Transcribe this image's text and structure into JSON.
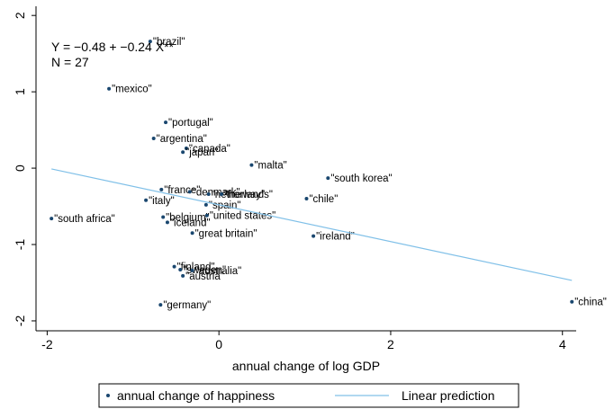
{
  "chart_data": {
    "type": "scatter",
    "x_label": "annual change of log GDP",
    "annotations": [
      "Y = −0.48 + −0.24 X**",
      "N = 27"
    ],
    "xlim": [
      -2.13,
      4.16
    ],
    "ylim": [
      -2.13,
      2.12
    ],
    "xticks": [
      -2,
      0,
      2,
      4
    ],
    "yticks": [
      -2,
      -1,
      0,
      1,
      2
    ],
    "grid": false,
    "legend": "bottom",
    "series": [
      {
        "name": "annual change of happiness",
        "color": "#1a476f",
        "labels": [
          "\"brazil\"",
          "\"mexico\"",
          "\"portugal\"",
          "\"argentina\"",
          "\"canada\"",
          "\"japan\"",
          "\"malta\"",
          "\"south korea\"",
          "\"chile\"",
          "\"france\"",
          "\"denmark\"",
          "\"netherlands\"",
          "\"norway\"",
          "\"italy\"",
          "\"spain\"",
          "\"south africa\"",
          "\"belgium\"",
          "\"united states\"",
          "\"iceland\"",
          "\"great britain\"",
          "\"ireland\"",
          "\"finland\"",
          "\"sweden\"",
          "\"australia\"",
          "\"austria\"",
          "\"germany\"",
          "\"china\""
        ],
        "x": [
          -0.8,
          -1.28,
          -0.62,
          -0.76,
          -0.38,
          -0.42,
          0.38,
          1.27,
          1.02,
          -0.67,
          -0.34,
          -0.12,
          0.03,
          -0.85,
          -0.15,
          -1.95,
          -0.65,
          -0.14,
          -0.6,
          -0.31,
          1.1,
          -0.52,
          -0.45,
          -0.31,
          -0.42,
          -0.68,
          4.11
        ],
        "values": [
          1.66,
          1.04,
          0.6,
          0.39,
          0.26,
          0.21,
          0.04,
          -0.13,
          -0.4,
          -0.28,
          -0.31,
          -0.34,
          -0.34,
          -0.42,
          -0.48,
          -0.66,
          -0.64,
          -0.62,
          -0.71,
          -0.85,
          -0.89,
          -1.29,
          -1.33,
          -1.34,
          -1.41,
          -1.79,
          -1.75
        ]
      },
      {
        "name": "Linear prediction",
        "type": "line",
        "color": "#80c0e8",
        "x": [
          -1.95,
          4.11
        ],
        "values": [
          -0.01,
          -1.47
        ]
      }
    ]
  }
}
